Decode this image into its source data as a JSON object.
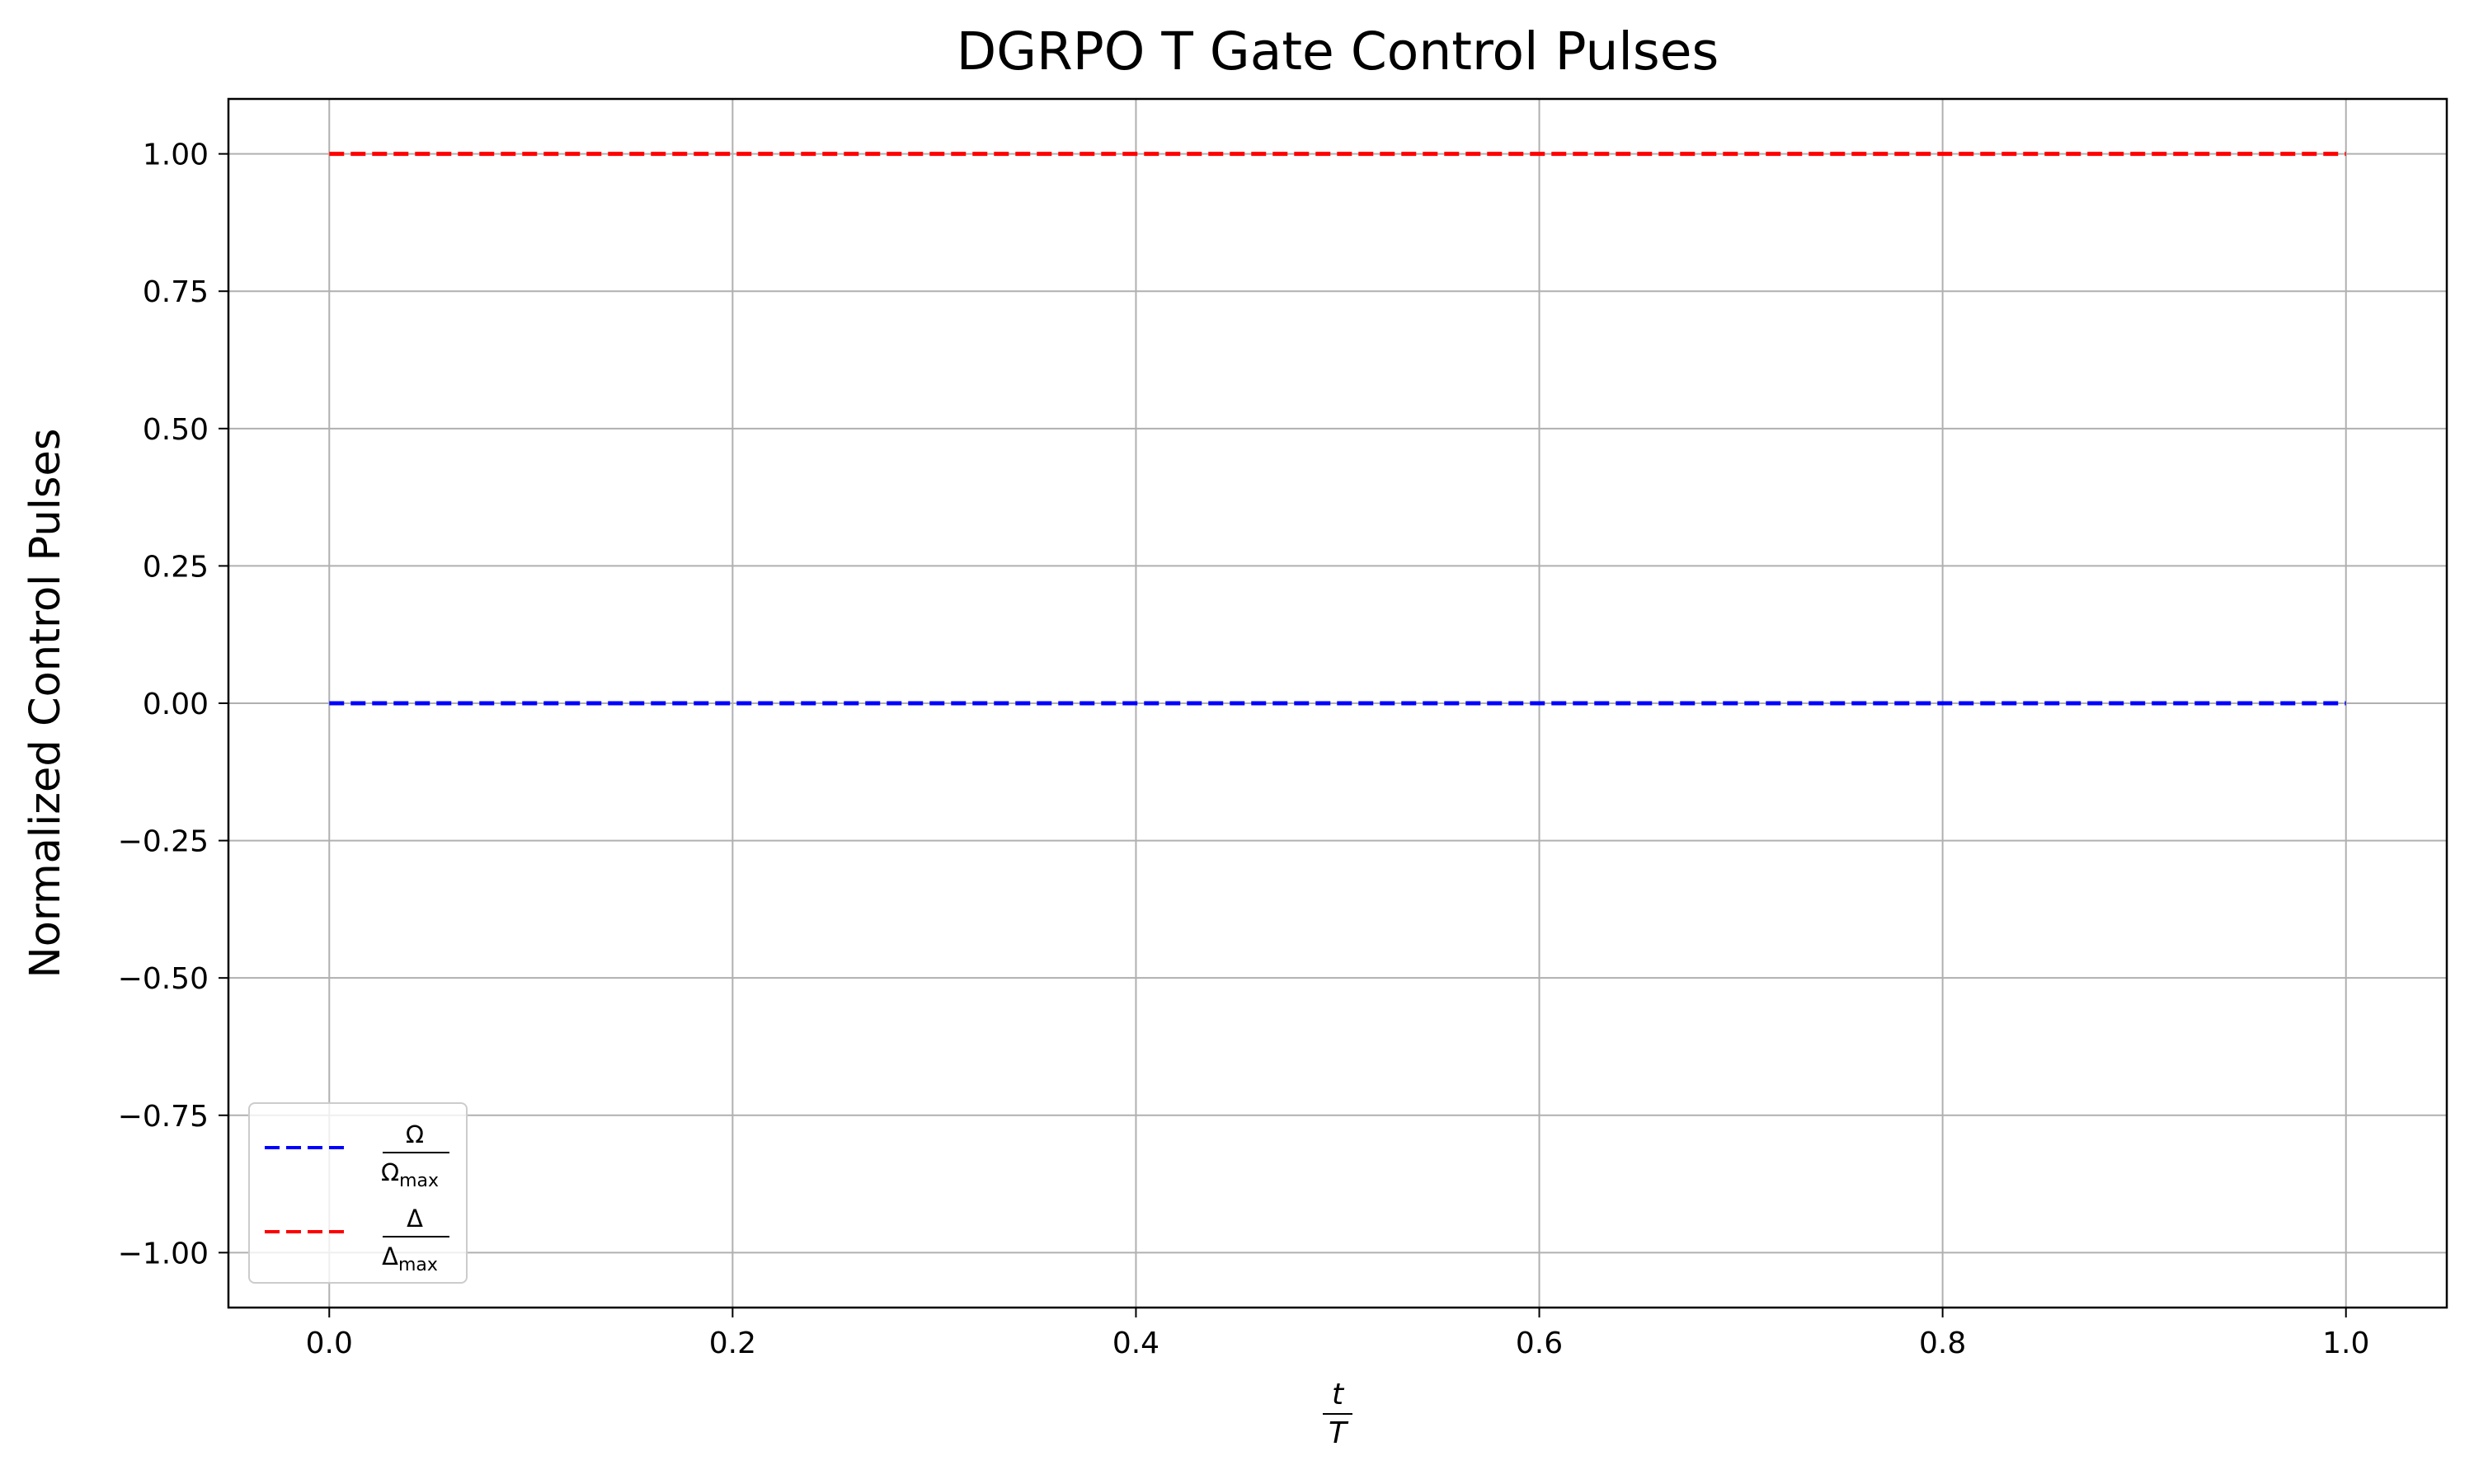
{
  "chart_data": {
    "type": "line",
    "title": "DGRPO T Gate Control Pulses",
    "ylabel": "Normalized Control Pulses",
    "xlabel": {
      "num": "t",
      "den": "T"
    },
    "xlim": [
      -0.05,
      1.05
    ],
    "ylim": [
      -1.1,
      1.1
    ],
    "xticks": [
      0.0,
      0.2,
      0.4,
      0.6,
      0.8,
      1.0
    ],
    "xtick_labels": [
      "0.0",
      "0.2",
      "0.4",
      "0.6",
      "0.8",
      "1.0"
    ],
    "yticks": [
      1.0,
      0.75,
      0.5,
      0.25,
      0.0,
      -0.25,
      -0.5,
      -0.75,
      -1.0
    ],
    "ytick_labels": [
      "1.00",
      "0.75",
      "0.50",
      "0.25",
      "0.00",
      "−0.25",
      "−0.50",
      "−0.75",
      "−1.00"
    ],
    "grid": true,
    "legend_position": "lower-left",
    "series": [
      {
        "legend": {
          "num": "Ω",
          "den": "Ω",
          "den_sub": "max"
        },
        "color": "#0000ff",
        "linestyle": "dashed",
        "x": [
          0.0,
          1.0
        ],
        "y": [
          0.0,
          0.0
        ]
      },
      {
        "legend": {
          "num": "Δ",
          "den": "Δ",
          "den_sub": "max"
        },
        "color": "#ff0000",
        "linestyle": "dashed",
        "x": [
          0.0,
          1.0
        ],
        "y": [
          1.0,
          1.0
        ]
      }
    ]
  }
}
